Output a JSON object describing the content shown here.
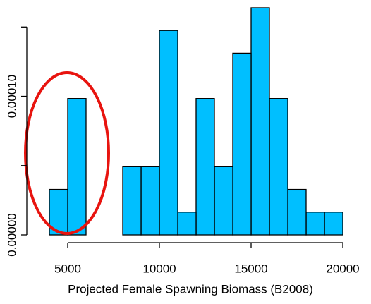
{
  "chart_data": {
    "type": "histogram",
    "x_label": "Projected Female Spawning Biomass (B2008)",
    "bins": [
      4000,
      5000,
      6000,
      7000,
      8000,
      9000,
      10000,
      11000,
      12000,
      13000,
      14000,
      15000,
      16000,
      17000,
      18000,
      19000,
      20000
    ],
    "values": [
      3.28e-05,
      9.84e-05,
      0,
      0,
      4.92e-05,
      4.92e-05,
      0.0001475,
      1.64e-05,
      9.84e-05,
      4.92e-05,
      0.0001311,
      0.0001639,
      9.84e-05,
      3.28e-05,
      1.64e-05,
      1.64e-05
    ],
    "color": "#00bfff",
    "xlim": [
      4000,
      20000
    ],
    "xticks": [
      5000,
      10000,
      15000,
      20000
    ],
    "ylim": [
      0,
      0.00017
    ],
    "yticks": [
      {
        "value": 0,
        "label": "0.00000"
      },
      {
        "value": 5e-05,
        "label": null
      },
      {
        "value": 0.0001,
        "label": "0.00010"
      },
      {
        "value": 0.00015,
        "label": null
      }
    ]
  }
}
